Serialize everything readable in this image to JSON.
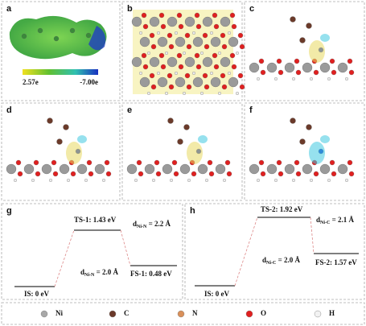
{
  "panels": {
    "a": {
      "label": "a",
      "colorbar": {
        "min_label": "2.57e",
        "max_label": "-7.00e"
      }
    },
    "b": {
      "label": "b"
    },
    "c": {
      "label": "c"
    },
    "d": {
      "label": "d"
    },
    "e": {
      "label": "e"
    },
    "f": {
      "label": "f"
    },
    "g": {
      "label": "g",
      "ts": "TS-1: 1.43 eV",
      "d_upper": {
        "symbol": "d",
        "subscript": "Ni-N",
        "text": " = 2.2 Å"
      },
      "d_lower": {
        "symbol": "d",
        "subscript": "Ni-N",
        "text": " = 2.0 Å"
      },
      "fs": "FS-1: 0.48 eV",
      "is": "IS: 0 eV"
    },
    "h": {
      "label": "h",
      "ts": "TS-2: 1.92 eV",
      "d_upper": {
        "symbol": "d",
        "subscript": "Ni-C",
        "text": " = 2.1 Å"
      },
      "d_lower": {
        "symbol": "d",
        "subscript": "Ni-C",
        "text": " = 2.0 Å"
      },
      "fs": "FS-2: 1.57 eV",
      "is": "IS: 0 eV"
    }
  },
  "legend": [
    {
      "label": "Ni",
      "color": "#a8a8a8"
    },
    {
      "label": "C",
      "color": "#6b3a2a"
    },
    {
      "label": "N",
      "color": "#d9905a"
    },
    {
      "label": "O",
      "color": "#e02020"
    },
    {
      "label": "H",
      "color": "#f2f2f2"
    }
  ]
}
